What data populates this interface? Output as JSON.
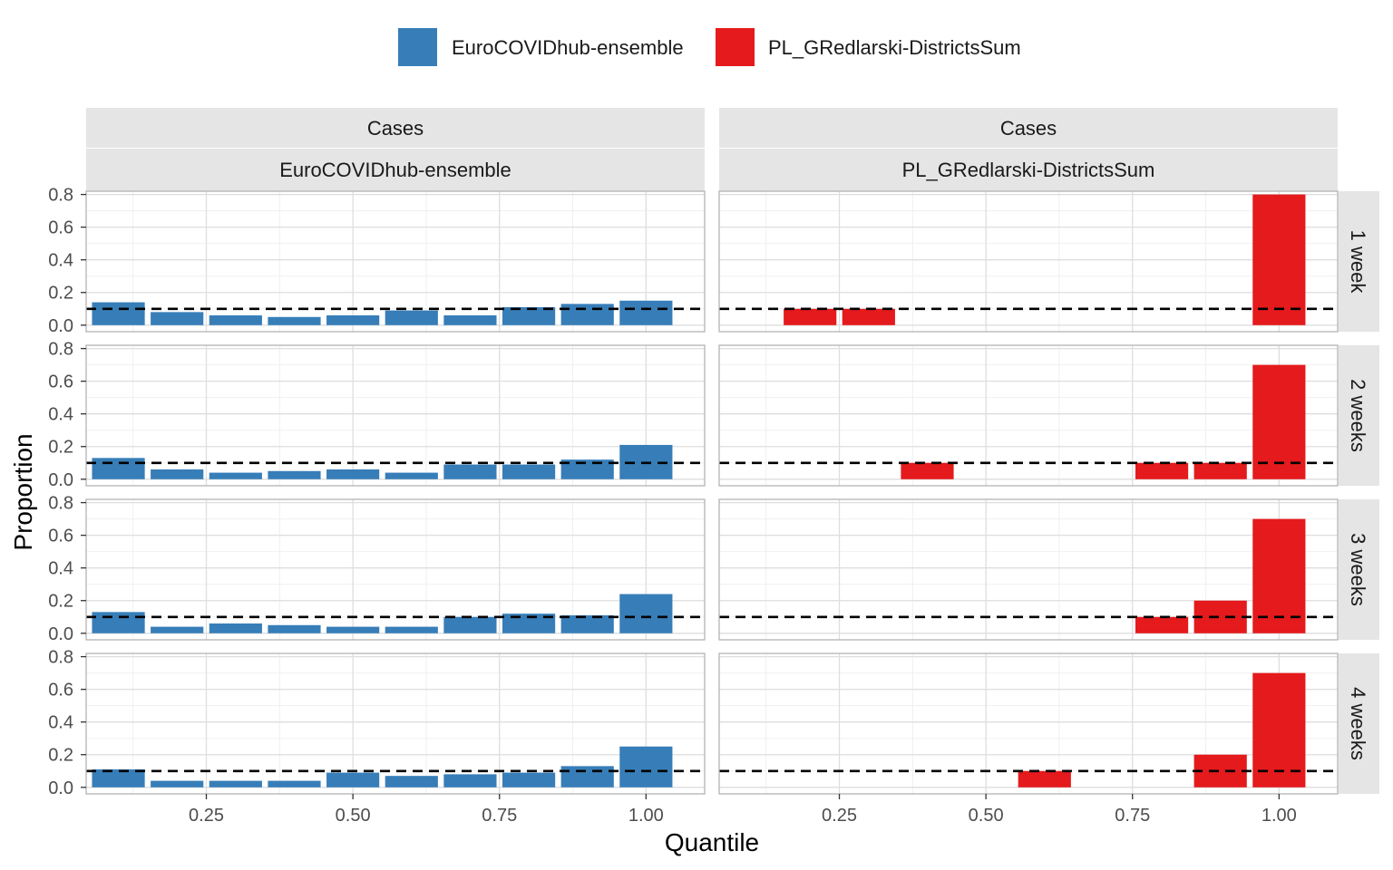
{
  "chart_data": {
    "type": "bar",
    "xlabel": "Quantile",
    "ylabel": "Proportion",
    "facet_column_header": "Cases",
    "x": [
      0.1,
      0.2,
      0.3,
      0.4,
      0.5,
      0.6,
      0.7,
      0.8,
      0.9,
      1.0
    ],
    "x_ticks": [
      0.25,
      0.5,
      0.75,
      1.0
    ],
    "x_tick_labels": [
      "0.25",
      "0.50",
      "0.75",
      "1.00"
    ],
    "y_ticks": [
      0.0,
      0.2,
      0.4,
      0.6,
      0.8
    ],
    "y_tick_labels": [
      "0.0",
      "0.2",
      "0.4",
      "0.6",
      "0.8"
    ],
    "xlim": [
      0.045,
      1.1
    ],
    "ylim": [
      -0.04,
      0.82
    ],
    "reference_line": 0.1,
    "grid": true,
    "legend_position": "top",
    "rows": [
      "1 week",
      "2 weeks",
      "3 weeks",
      "4 weeks"
    ],
    "series": [
      {
        "name": "EuroCOVIDhub-ensemble",
        "color": "#377EB8",
        "values": {
          "1 week": [
            0.14,
            0.08,
            0.06,
            0.05,
            0.06,
            0.09,
            0.06,
            0.11,
            0.13,
            0.15
          ],
          "2 weeks": [
            0.13,
            0.06,
            0.04,
            0.05,
            0.06,
            0.04,
            0.09,
            0.09,
            0.12,
            0.21
          ],
          "3 weeks": [
            0.13,
            0.04,
            0.06,
            0.05,
            0.04,
            0.04,
            0.1,
            0.12,
            0.11,
            0.24
          ],
          "4 weeks": [
            0.11,
            0.04,
            0.04,
            0.04,
            0.09,
            0.07,
            0.08,
            0.09,
            0.13,
            0.25
          ]
        }
      },
      {
        "name": "PL_GRedlarski-DistrictsSum",
        "color": "#E41A1C",
        "values": {
          "1 week": [
            0.0,
            0.1,
            0.1,
            0.0,
            0.0,
            0.0,
            0.0,
            0.0,
            0.0,
            0.8
          ],
          "2 weeks": [
            0.0,
            0.0,
            0.0,
            0.1,
            0.0,
            0.0,
            0.0,
            0.1,
            0.1,
            0.7
          ],
          "3 weeks": [
            0.0,
            0.0,
            0.0,
            0.0,
            0.0,
            0.0,
            0.0,
            0.1,
            0.2,
            0.7
          ],
          "4 weeks": [
            0.0,
            0.0,
            0.0,
            0.0,
            0.0,
            0.1,
            0.0,
            0.0,
            0.2,
            0.7
          ]
        }
      }
    ]
  }
}
